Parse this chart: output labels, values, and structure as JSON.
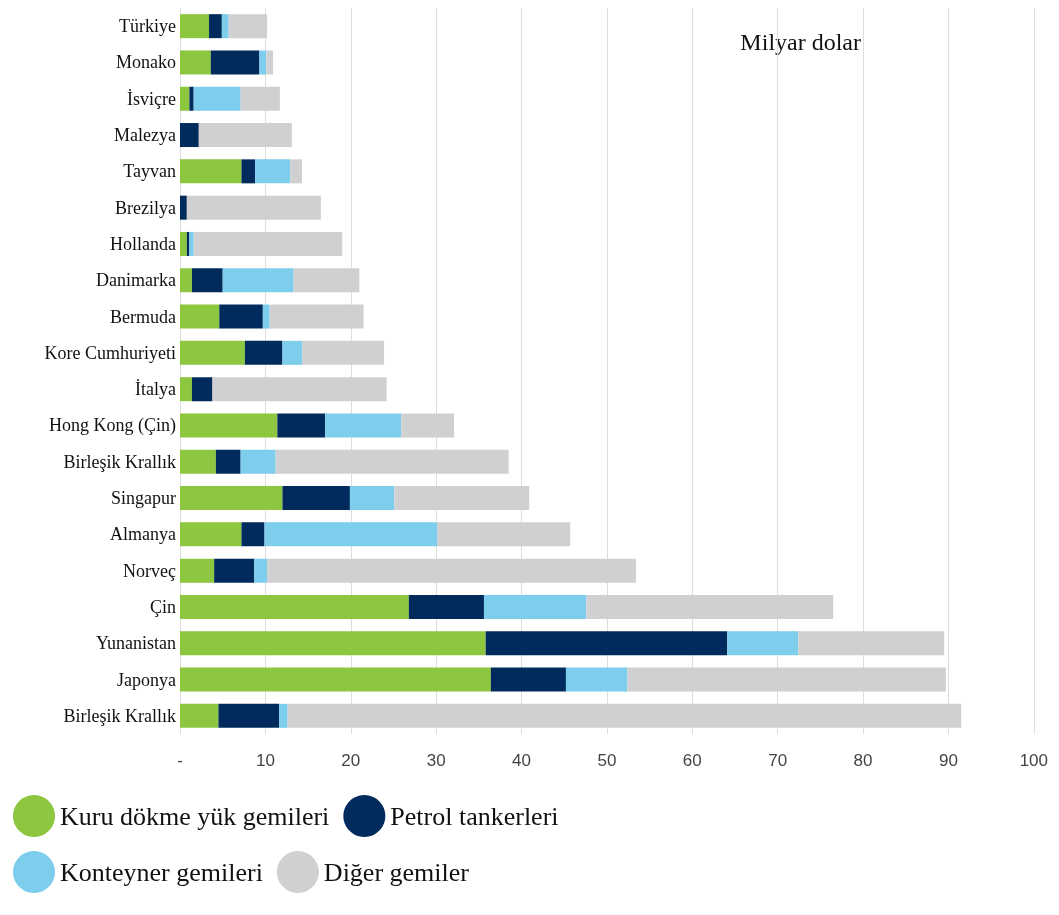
{
  "chart_data": {
    "type": "bar",
    "orientation": "horizontal",
    "stacked": true,
    "categories": [
      "Türkiye",
      "Monako",
      "İsviçre",
      "Malezya",
      "Tayvan",
      "Brezilya",
      "Hollanda",
      "Danimarka",
      "Bermuda",
      "Kore Cumhuriyeti",
      "İtalya",
      "Hong Kong (Çin)",
      "Birleşik Krallık",
      "Singapur",
      "Almanya",
      "Norveç",
      "Çin",
      "Yunanistan",
      "Japonya",
      "Birleşik Krallık"
    ],
    "series": [
      {
        "name": "Kuru dökme yük gemileri",
        "color": "#8dc63f",
        "values": [
          3.4,
          3.6,
          1.1,
          0,
          7.2,
          0,
          0.8,
          1.4,
          4.6,
          7.6,
          1.4,
          11.4,
          4.2,
          12.0,
          7.2,
          4.0,
          26.8,
          35.8,
          36.4,
          4.5
        ]
      },
      {
        "name": "Petrol tankerleri",
        "color": "#002b5c",
        "values": [
          1.5,
          5.7,
          0.5,
          2.2,
          1.6,
          0.8,
          0.3,
          3.6,
          5.1,
          4.4,
          2.4,
          5.6,
          2.9,
          7.9,
          2.7,
          4.7,
          8.8,
          28.3,
          8.8,
          7.1
        ]
      },
      {
        "name": "Konteyner gemileri",
        "color": "#7dcdec",
        "values": [
          0.8,
          0.8,
          5.5,
          0,
          4.1,
          0,
          0.5,
          8.3,
          0.8,
          2.3,
          0,
          8.9,
          4.1,
          5.2,
          20.2,
          1.5,
          12.0,
          8.3,
          7.2,
          1.0
        ]
      },
      {
        "name": "Diğer gemiler",
        "color": "#d0d0d2",
        "values": [
          4.5,
          0.8,
          4.6,
          10.9,
          1.4,
          15.7,
          17.4,
          7.7,
          11.0,
          9.6,
          20.4,
          6.2,
          27.3,
          15.8,
          15.6,
          43.2,
          28.9,
          17.1,
          37.3,
          78.9
        ]
      }
    ],
    "xlim": [
      0,
      100
    ],
    "xticks": [
      {
        "value": 0,
        "label": "-"
      },
      10,
      20,
      30,
      40,
      50,
      60,
      70,
      80,
      90,
      100
    ],
    "grid": "x",
    "legend": "bottom left",
    "annotations": [
      "Milyar dolar"
    ]
  }
}
